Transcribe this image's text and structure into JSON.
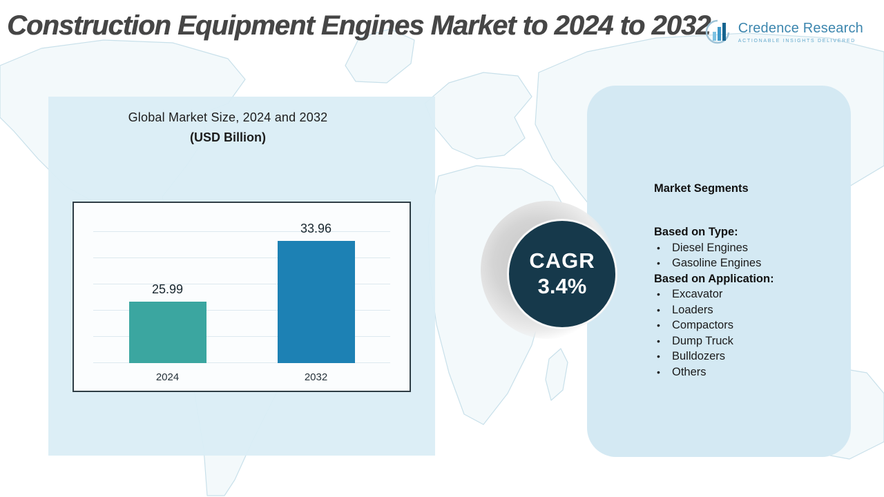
{
  "header": {
    "title": "Construction Equipment Engines Market to 2024 to 2032",
    "logo": {
      "brand": "Credence Research",
      "tagline": "Actionable Insights Delivered"
    }
  },
  "left_panel": {
    "chart_title_line1": "Global Market Size, 2024 and 2032",
    "chart_title_line2": "(USD Billion)"
  },
  "chart_data": {
    "type": "bar",
    "title": "Global Market Size, 2024 and 2032 (USD Billion)",
    "categories": [
      "2024",
      "2032"
    ],
    "values": [
      25.99,
      33.96
    ],
    "colors": [
      "#3BA6A0",
      "#1D81B4"
    ],
    "ylim": [
      18,
      38
    ],
    "grid": true,
    "legend": false,
    "xlabel": "",
    "ylabel": ""
  },
  "cagr_badge": {
    "label": "CAGR",
    "value": "3.4%"
  },
  "segments_panel": {
    "heading": "Market Segments",
    "groups": [
      {
        "title": "Based on Type:",
        "items": [
          "Diesel Engines",
          "Gasoline Engines"
        ]
      },
      {
        "title": "Based on Application:",
        "items": [
          "Excavator",
          "Loaders",
          "Compactors",
          "Dump Truck",
          "Bulldozers",
          "Others"
        ]
      }
    ]
  },
  "colors": {
    "left_panel_bg": "#D9EDF5",
    "right_panel_bg": "#D4E9F3",
    "cagr_circle_bg": "#16394B",
    "title_text": "#464646",
    "logo_blue": "#3C86AE",
    "map_line": "#C8E0EA",
    "bullet": "#1B1B1B"
  }
}
